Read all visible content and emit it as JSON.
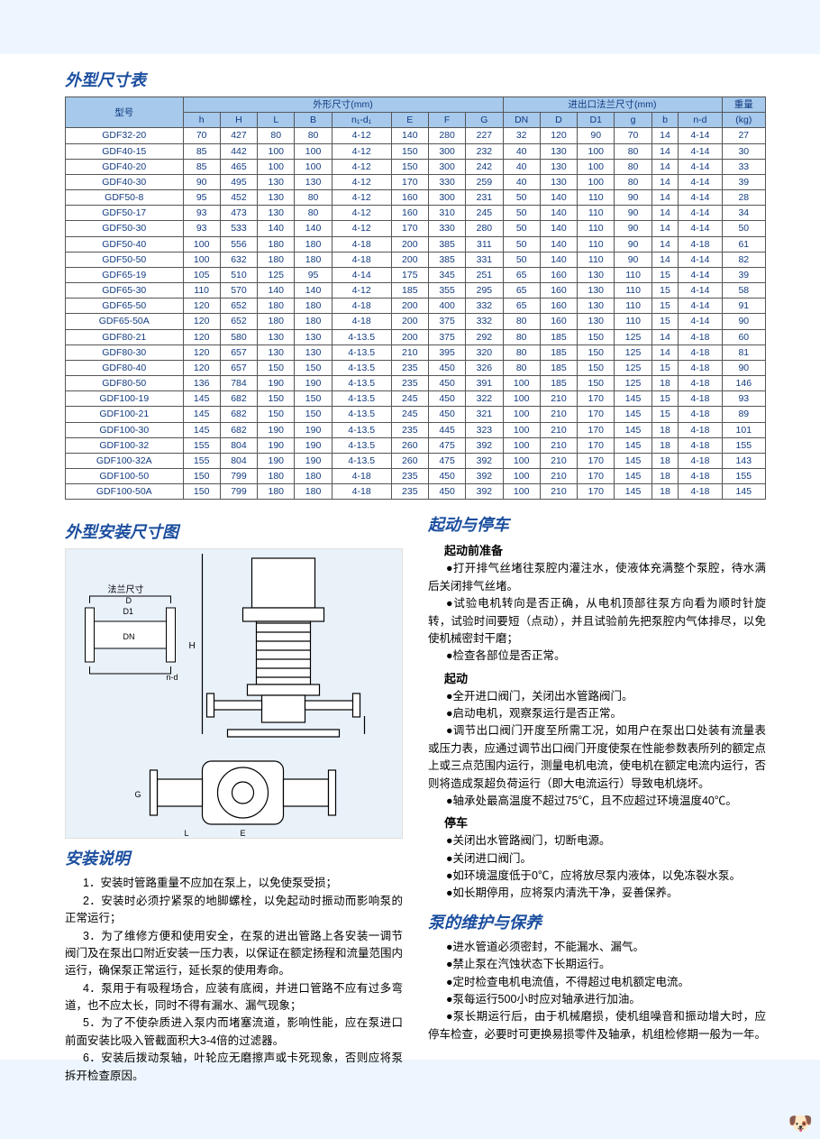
{
  "titles": {
    "table_title": "外型尺寸表",
    "diagram_title": "外型安装尺寸图",
    "install_title": "安装说明",
    "startup_title": "起动与停车",
    "maint_title": "泵的维护与保养"
  },
  "table": {
    "group_headers": [
      "型号",
      "外形尺寸(mm)",
      "进出口法兰尺寸(mm)",
      "重量"
    ],
    "sub_headers": [
      "h",
      "H",
      "L",
      "B",
      "n₁-d₁",
      "E",
      "F",
      "G",
      "DN",
      "D",
      "D1",
      "g",
      "b",
      "n-d",
      "(kg)"
    ],
    "rows": [
      [
        "GDF32-20",
        "70",
        "427",
        "80",
        "80",
        "4-12",
        "140",
        "280",
        "227",
        "32",
        "120",
        "90",
        "70",
        "14",
        "4-14",
        "27"
      ],
      [
        "GDF40-15",
        "85",
        "442",
        "100",
        "100",
        "4-12",
        "150",
        "300",
        "232",
        "40",
        "130",
        "100",
        "80",
        "14",
        "4-14",
        "30"
      ],
      [
        "GDF40-20",
        "85",
        "465",
        "100",
        "100",
        "4-12",
        "150",
        "300",
        "242",
        "40",
        "130",
        "100",
        "80",
        "14",
        "4-14",
        "33"
      ],
      [
        "GDF40-30",
        "90",
        "495",
        "130",
        "130",
        "4-12",
        "170",
        "330",
        "259",
        "40",
        "130",
        "100",
        "80",
        "14",
        "4-14",
        "39"
      ],
      [
        "GDF50-8",
        "95",
        "452",
        "130",
        "80",
        "4-12",
        "160",
        "300",
        "231",
        "50",
        "140",
        "110",
        "90",
        "14",
        "4-14",
        "28"
      ],
      [
        "GDF50-17",
        "93",
        "473",
        "130",
        "80",
        "4-12",
        "160",
        "310",
        "245",
        "50",
        "140",
        "110",
        "90",
        "14",
        "4-14",
        "34"
      ],
      [
        "GDF50-30",
        "93",
        "533",
        "140",
        "140",
        "4-12",
        "170",
        "330",
        "280",
        "50",
        "140",
        "110",
        "90",
        "14",
        "4-14",
        "50"
      ],
      [
        "GDF50-40",
        "100",
        "556",
        "180",
        "180",
        "4-18",
        "200",
        "385",
        "311",
        "50",
        "140",
        "110",
        "90",
        "14",
        "4-18",
        "61"
      ],
      [
        "GDF50-50",
        "100",
        "632",
        "180",
        "180",
        "4-18",
        "200",
        "385",
        "331",
        "50",
        "140",
        "110",
        "90",
        "14",
        "4-14",
        "82"
      ],
      [
        "GDF65-19",
        "105",
        "510",
        "125",
        "95",
        "4-14",
        "175",
        "345",
        "251",
        "65",
        "160",
        "130",
        "110",
        "15",
        "4-14",
        "39"
      ],
      [
        "GDF65-30",
        "110",
        "570",
        "140",
        "140",
        "4-12",
        "185",
        "355",
        "295",
        "65",
        "160",
        "130",
        "110",
        "15",
        "4-14",
        "58"
      ],
      [
        "GDF65-50",
        "120",
        "652",
        "180",
        "180",
        "4-18",
        "200",
        "400",
        "332",
        "65",
        "160",
        "130",
        "110",
        "15",
        "4-14",
        "91"
      ],
      [
        "GDF65-50A",
        "120",
        "652",
        "180",
        "180",
        "4-18",
        "200",
        "375",
        "332",
        "80",
        "160",
        "130",
        "110",
        "15",
        "4-14",
        "90"
      ],
      [
        "GDF80-21",
        "120",
        "580",
        "130",
        "130",
        "4-13.5",
        "200",
        "375",
        "292",
        "80",
        "185",
        "150",
        "125",
        "14",
        "4-18",
        "60"
      ],
      [
        "GDF80-30",
        "120",
        "657",
        "130",
        "130",
        "4-13.5",
        "210",
        "395",
        "320",
        "80",
        "185",
        "150",
        "125",
        "14",
        "4-18",
        "81"
      ],
      [
        "GDF80-40",
        "120",
        "657",
        "150",
        "150",
        "4-13.5",
        "235",
        "450",
        "326",
        "80",
        "185",
        "150",
        "125",
        "15",
        "4-18",
        "90"
      ],
      [
        "GDF80-50",
        "136",
        "784",
        "190",
        "190",
        "4-13.5",
        "235",
        "450",
        "391",
        "100",
        "185",
        "150",
        "125",
        "18",
        "4-18",
        "146"
      ],
      [
        "GDF100-19",
        "145",
        "682",
        "150",
        "150",
        "4-13.5",
        "245",
        "450",
        "322",
        "100",
        "210",
        "170",
        "145",
        "15",
        "4-18",
        "93"
      ],
      [
        "GDF100-21",
        "145",
        "682",
        "150",
        "150",
        "4-13.5",
        "245",
        "450",
        "321",
        "100",
        "210",
        "170",
        "145",
        "15",
        "4-18",
        "89"
      ],
      [
        "GDF100-30",
        "145",
        "682",
        "190",
        "190",
        "4-13.5",
        "235",
        "445",
        "323",
        "100",
        "210",
        "170",
        "145",
        "18",
        "4-18",
        "101"
      ],
      [
        "GDF100-32",
        "155",
        "804",
        "190",
        "190",
        "4-13.5",
        "260",
        "475",
        "392",
        "100",
        "210",
        "170",
        "145",
        "18",
        "4-18",
        "155"
      ],
      [
        "GDF100-32A",
        "155",
        "804",
        "190",
        "190",
        "4-13.5",
        "260",
        "475",
        "392",
        "100",
        "210",
        "170",
        "145",
        "18",
        "4-18",
        "143"
      ],
      [
        "GDF100-50",
        "150",
        "799",
        "180",
        "180",
        "4-18",
        "235",
        "450",
        "392",
        "100",
        "210",
        "170",
        "145",
        "18",
        "4-18",
        "155"
      ],
      [
        "GDF100-50A",
        "150",
        "799",
        "180",
        "180",
        "4-18",
        "235",
        "450",
        "392",
        "100",
        "210",
        "170",
        "145",
        "18",
        "4-18",
        "145"
      ]
    ]
  },
  "install": {
    "items": [
      "1．安装时管路重量不应加在泵上，以免使泵受损；",
      "2．安装时必须拧紧泵的地脚螺栓，以免起动时振动而影响泵的正常运行；",
      "3．为了维修方便和使用安全，在泵的进出管路上各安装一调节阀门及在泵出口附近安装一压力表，以保证在额定扬程和流量范围内运行，确保泵正常运行，延长泵的使用寿命。",
      "4．泵用于有吸程场合，应装有底阀，并进口管路不应有过多弯道，也不应太长，同时不得有漏水、漏气现象；",
      "5．为了不使杂质进入泵内而堵塞流道，影响性能，应在泵进口前面安装比吸入管截面积大3-4倍的过滤器。",
      "6．安装后拨动泵轴，叶轮应无磨擦声或卡死现象，否则应将泵拆开检查原因。"
    ]
  },
  "startup": {
    "prep_head": "起动前准备",
    "prep": [
      "●打开排气丝堵往泵腔内灌注水，使液体充满整个泵腔，待水满后关闭排气丝堵。",
      "●试验电机转向是否正确，从电机顶部往泵方向看为顺时针旋转，试验时间要短（点动），并且试验前先把泵腔内气体排尽，以免使机械密封干磨；",
      "●检查各部位是否正常。"
    ],
    "start_head": "起动",
    "start": [
      "●全开进口阀门，关闭出水管路阀门。",
      "●启动电机，观察泵运行是否正常。",
      "●调节出口阀门开度至所需工况，如用户在泵出口处装有流量表或压力表，应通过调节出口阀门开度使泵在性能参数表所列的额定点上或三点范围内运行，测量电机电流，使电机在额定电流内运行，否则将造成泵超负荷运行（即大电流运行）导致电机烧坏。",
      "●轴承处最高温度不超过75℃，且不应超过环境温度40℃。"
    ],
    "stop_head": "停车",
    "stop": [
      "●关闭出水管路阀门，切断电源。",
      "●关闭进口阀门。",
      "●如环境温度低于0℃，应将放尽泵内液体，以免冻裂水泵。",
      "●如长期停用，应将泵内清洗干净，妥善保养。"
    ]
  },
  "maint": {
    "items": [
      "●进水管道必须密封，不能漏水、漏气。",
      "●禁止泵在汽蚀状态下长期运行。",
      "●定时检查电机电流值，不得超过电机额定电流。",
      "●泵每运行500小时应对轴承进行加油。",
      "●泵长期运行后，由于机械磨损，使机组噪音和振动增大时，应停车检查，必要时可更换易损零件及轴承，机组检修期一般为一年。"
    ]
  },
  "diagram_labels": {
    "flange": "法兰尺寸",
    "dim_h": "H",
    "dim_L": "L",
    "dim_E": "E",
    "dim_B": "B",
    "dim_G": "G",
    "dim_nd": "n-d",
    "dim_D": "D",
    "dim_D1": "D1",
    "dim_DN": "DN",
    "dim_g": "g",
    "dim_b": "b",
    "dim_h2": "h"
  }
}
